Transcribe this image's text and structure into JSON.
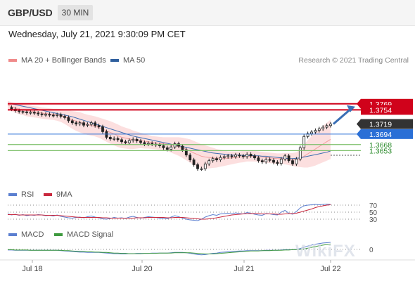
{
  "header": {
    "symbol": "GBP/USD",
    "timeframe": "30 MIN"
  },
  "datetime": "Wednesday, July 21, 2021 9:30:09 PM CET",
  "legend_main": [
    {
      "label": "MA 20 + Bollinger Bands",
      "color": "#f08a8a"
    },
    {
      "label": "MA 50",
      "color": "#2f5f9e"
    }
  ],
  "credit": "Research © 2021 Trading Central",
  "legend_rsi": [
    {
      "label": "RSI",
      "color": "#5b7fd0"
    },
    {
      "label": "9MA",
      "color": "#c9283e"
    }
  ],
  "legend_macd": [
    {
      "label": "MACD",
      "color": "#5b7fd0"
    },
    {
      "label": "MACD Signal",
      "color": "#3f9a3f"
    }
  ],
  "watermark": "WikiFX",
  "colors": {
    "resistance": "#d0021b",
    "support": "#2a6fd6",
    "target": "#3a6fb5",
    "last": "#333333"
  },
  "chart_data": {
    "type": "candlestick",
    "ylim": [
      1.357,
      1.38
    ],
    "x_ticks": [
      "Jul 18",
      "Jul 20",
      "Jul 21",
      "Jul 22"
    ],
    "price_levels": [
      {
        "value": 1.3769,
        "label": "1.3769",
        "type": "resistance"
      },
      {
        "value": 1.3754,
        "label": "1.3754",
        "type": "resistance"
      },
      {
        "value": 1.3719,
        "label": "1.3719",
        "type": "last"
      },
      {
        "value": 1.3694,
        "label": "1.3694",
        "type": "support"
      },
      {
        "value": 1.3668,
        "label": "1.3668",
        "type": "minor"
      },
      {
        "value": 1.3653,
        "label": "1.3653",
        "type": "minor"
      }
    ],
    "close": [
      1.376,
      1.3756,
      1.3752,
      1.375,
      1.3749,
      1.3747,
      1.3748,
      1.3746,
      1.3744,
      1.3742,
      1.3743,
      1.3741,
      1.374,
      1.3742,
      1.3738,
      1.3735,
      1.3727,
      1.3722,
      1.3719,
      1.3722,
      1.3716,
      1.3718,
      1.3722,
      1.3715,
      1.3712,
      1.37,
      1.3686,
      1.3682,
      1.3683,
      1.368,
      1.3675,
      1.3672,
      1.3678,
      1.3681,
      1.3677,
      1.3673,
      1.3669,
      1.3671,
      1.3669,
      1.3667,
      1.3665,
      1.366,
      1.3656,
      1.3662,
      1.367,
      1.3664,
      1.3655,
      1.3642,
      1.363,
      1.3618,
      1.3608,
      1.3608,
      1.362,
      1.3628,
      1.3633,
      1.363,
      1.3636,
      1.3638,
      1.364,
      1.3638,
      1.3642,
      1.364,
      1.3638,
      1.3644,
      1.364,
      1.3635,
      1.3628,
      1.3625,
      1.3631,
      1.3629,
      1.3624,
      1.3621,
      1.3632,
      1.364,
      1.3628,
      1.362,
      1.3632,
      1.366,
      1.3688,
      1.3695,
      1.3699,
      1.3703,
      1.3707,
      1.3711,
      1.3715,
      1.3719
    ],
    "ma20": [
      1.3766,
      1.3762,
      1.3759,
      1.3756,
      1.3754,
      1.3752,
      1.3751,
      1.3749,
      1.3748,
      1.3746,
      1.3745,
      1.3744,
      1.3743,
      1.3742,
      1.374,
      1.3737,
      1.3733,
      1.3729,
      1.3726,
      1.3723,
      1.372,
      1.3717,
      1.3715,
      1.3713,
      1.371,
      1.3706,
      1.3702,
      1.3698,
      1.3694,
      1.369,
      1.3686,
      1.3684,
      1.3682,
      1.368,
      1.3679,
      1.3678,
      1.3676,
      1.3675,
      1.3673,
      1.3672,
      1.3671,
      1.367,
      1.3669,
      1.3667,
      1.3665,
      1.3663,
      1.366,
      1.3656,
      1.3652,
      1.3647,
      1.3643,
      1.3639,
      1.3637,
      1.3636,
      1.3635,
      1.3634,
      1.3634,
      1.3634,
      1.3634,
      1.3635,
      1.3636,
      1.3637,
      1.3638,
      1.3639,
      1.3639,
      1.3639,
      1.3638,
      1.3637,
      1.3636,
      1.3635,
      1.3634,
      1.3633,
      1.3633,
      1.3633,
      1.3632,
      1.3631,
      1.3631,
      1.3634,
      1.3639,
      1.3645,
      1.3651,
      1.3657,
      1.3663,
      1.3669,
      1.3675,
      1.3681
    ],
    "ma50": [
      1.377,
      1.3769,
      1.3767,
      1.3765,
      1.3763,
      1.3761,
      1.3759,
      1.3757,
      1.3755,
      1.3753,
      1.3751,
      1.3749,
      1.3747,
      1.3745,
      1.3743,
      1.3741,
      1.3739,
      1.3737,
      1.3734,
      1.3731,
      1.3728,
      1.3725,
      1.3722,
      1.3719,
      1.3716,
      1.3713,
      1.371,
      1.3707,
      1.3704,
      1.3701,
      1.3698,
      1.3695,
      1.3692,
      1.3689,
      1.3687,
      1.3685,
      1.3683,
      1.3681,
      1.3679,
      1.3677,
      1.3675,
      1.3673,
      1.3671,
      1.3669,
      1.3667,
      1.3665,
      1.3663,
      1.3661,
      1.3659,
      1.3657,
      1.3655,
      1.3653,
      1.3651,
      1.3649,
      1.3647,
      1.3646,
      1.3645,
      1.3644,
      1.3643,
      1.3642,
      1.3642,
      1.3642,
      1.3641,
      1.3641,
      1.3641,
      1.364,
      1.364,
      1.3639,
      1.3639,
      1.3638,
      1.3637,
      1.3636,
      1.3635,
      1.3634,
      1.3633,
      1.3633,
      1.3634,
      1.3635,
      1.3637,
      1.3639,
      1.3641,
      1.3643,
      1.3645,
      1.3647,
      1.3649,
      1.3652
    ],
    "bb_width": [
      0.001,
      0.0011,
      0.0012,
      0.0013,
      0.0013,
      0.0014,
      0.0014,
      0.0014,
      0.0014,
      0.0014,
      0.0014,
      0.0014,
      0.0014,
      0.0015,
      0.0016,
      0.0018,
      0.002,
      0.0022,
      0.0024,
      0.0025,
      0.0025,
      0.0025,
      0.0025,
      0.0025,
      0.0025,
      0.0026,
      0.0027,
      0.0028,
      0.0028,
      0.0028,
      0.0027,
      0.0026,
      0.0025,
      0.0023,
      0.0021,
      0.0019,
      0.0018,
      0.0017,
      0.0016,
      0.0016,
      0.0016,
      0.0016,
      0.0017,
      0.0019,
      0.0021,
      0.0023,
      0.0025,
      0.0027,
      0.0029,
      0.003,
      0.003,
      0.003,
      0.0029,
      0.0027,
      0.0025,
      0.0023,
      0.0021,
      0.0019,
      0.0017,
      0.0016,
      0.0015,
      0.0014,
      0.0014,
      0.0013,
      0.0013,
      0.0013,
      0.0013,
      0.0013,
      0.0013,
      0.0013,
      0.0013,
      0.0013,
      0.0013,
      0.0014,
      0.0015,
      0.0016,
      0.0018,
      0.0022,
      0.0028,
      0.0034,
      0.0038,
      0.0041,
      0.0043,
      0.0045,
      0.0047,
      0.0049
    ],
    "rsi": {
      "levels": [
        70,
        50,
        30
      ],
      "ylim": [
        20,
        80
      ],
      "rsi": [
        45,
        42,
        44,
        41,
        43,
        40,
        42,
        41,
        43,
        42,
        40,
        41,
        39,
        42,
        38,
        36,
        34,
        33,
        35,
        36,
        34,
        37,
        39,
        36,
        34,
        31,
        30,
        32,
        35,
        33,
        34,
        32,
        36,
        38,
        35,
        33,
        35,
        37,
        36,
        35,
        33,
        32,
        31,
        36,
        40,
        37,
        33,
        30,
        28,
        27,
        26,
        30,
        36,
        40,
        43,
        41,
        45,
        46,
        47,
        45,
        48,
        46,
        45,
        49,
        47,
        44,
        42,
        41,
        46,
        45,
        43,
        42,
        50,
        55,
        47,
        44,
        52,
        62,
        68,
        70,
        71,
        72,
        71,
        72,
        73,
        72
      ],
      "ma9": [
        43,
        43,
        43,
        42,
        42,
        42,
        42,
        42,
        42,
        42,
        41,
        41,
        41,
        41,
        40,
        39,
        38,
        37,
        36,
        35,
        35,
        35,
        35,
        35,
        35,
        34,
        34,
        33,
        33,
        33,
        33,
        33,
        33,
        33,
        34,
        34,
        34,
        35,
        35,
        35,
        35,
        35,
        34,
        34,
        35,
        35,
        35,
        34,
        33,
        32,
        31,
        30,
        30,
        31,
        32,
        34,
        36,
        38,
        40,
        42,
        43,
        44,
        45,
        46,
        46,
        46,
        46,
        45,
        45,
        45,
        45,
        44,
        44,
        45,
        46,
        46,
        47,
        50,
        53,
        56,
        59,
        63,
        66,
        68,
        70,
        71
      ]
    },
    "macd": {
      "macd": [
        -2,
        -2,
        -3,
        -3,
        -3,
        -3,
        -3,
        -3,
        -3,
        -3,
        -3,
        -3,
        -3,
        -3,
        -4,
        -5,
        -6,
        -7,
        -8,
        -9,
        -9,
        -10,
        -10,
        -10,
        -10,
        -11,
        -12,
        -13,
        -14,
        -14,
        -15,
        -15,
        -14,
        -14,
        -13,
        -13,
        -13,
        -13,
        -12,
        -12,
        -12,
        -12,
        -12,
        -11,
        -10,
        -10,
        -10,
        -11,
        -13,
        -15,
        -17,
        -18,
        -17,
        -15,
        -13,
        -12,
        -10,
        -9,
        -8,
        -7,
        -6,
        -5,
        -5,
        -4,
        -4,
        -4,
        -4,
        -4,
        -3,
        -3,
        -3,
        -3,
        -2,
        -1,
        -1,
        -1,
        0,
        3,
        7,
        11,
        14,
        17,
        19,
        21,
        22,
        23
      ],
      "signal": [
        -1,
        -1,
        -2,
        -2,
        -2,
        -2,
        -3,
        -3,
        -3,
        -3,
        -3,
        -3,
        -3,
        -3,
        -3,
        -4,
        -4,
        -5,
        -6,
        -6,
        -7,
        -8,
        -8,
        -9,
        -9,
        -10,
        -10,
        -11,
        -12,
        -12,
        -13,
        -13,
        -14,
        -14,
        -14,
        -14,
        -13,
        -13,
        -13,
        -13,
        -12,
        -12,
        -12,
        -12,
        -11,
        -11,
        -11,
        -11,
        -11,
        -12,
        -13,
        -14,
        -15,
        -15,
        -15,
        -14,
        -13,
        -12,
        -11,
        -10,
        -9,
        -8,
        -7,
        -6,
        -5,
        -5,
        -5,
        -4,
        -4,
        -4,
        -3,
        -3,
        -3,
        -2,
        -2,
        -1,
        -1,
        0,
        2,
        4,
        7,
        9,
        12,
        14,
        16,
        18
      ],
      "zero_label": "0"
    }
  }
}
